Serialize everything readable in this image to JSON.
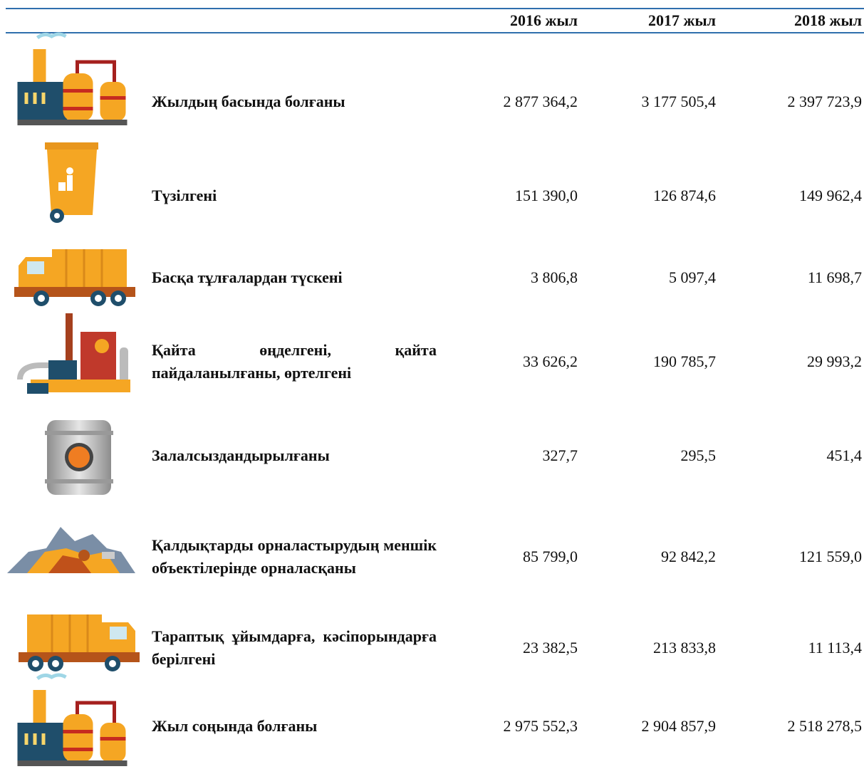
{
  "table": {
    "columns": [
      "2016 жыл",
      "2017 жыл",
      "2018 жыл"
    ],
    "rows": [
      {
        "label": "Жылдың басында болғаны",
        "values": [
          "2 877 364,2",
          "3 177 505,4",
          "2 397 723,9"
        ]
      },
      {
        "label": "Түзілгені",
        "values": [
          "151 390,0",
          "126 874,6",
          "149 962,4"
        ]
      },
      {
        "label": "Басқа тұлғалардан түскені",
        "values": [
          "3 806,8",
          "5 097,4",
          "11 698,7"
        ]
      },
      {
        "label": "Қайта өңделгені, қайта пайдаланылғаны, өртелгені",
        "values": [
          "33 626,2",
          "190 785,7",
          "29 993,2"
        ]
      },
      {
        "label": "Залалсыздандырылғаны",
        "values": [
          "327,7",
          "295,5",
          "451,4"
        ]
      },
      {
        "label": "Қалдықтарды орналастырудың меншік объектілерінде орналасқаны",
        "values": [
          "85 799,0",
          "92 842,2",
          "121 559,0"
        ]
      },
      {
        "label": "Тараптық ұйымдарға, кәсіпорындарға берілгені",
        "values": [
          "23 382,5",
          "213 833,8",
          "11 113,4"
        ]
      },
      {
        "label": "Жыл соңында болғаны",
        "values": [
          "2 975 552,3",
          "2 904 857,9",
          "2 518 278,5"
        ]
      }
    ]
  }
}
